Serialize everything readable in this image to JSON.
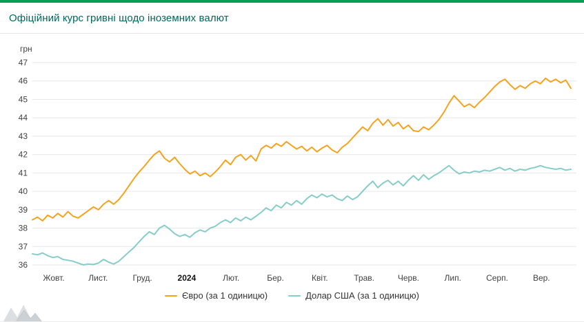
{
  "header": {
    "title": "Офіційний курс гривні щодо іноземних валют"
  },
  "colors": {
    "accent_bar": "#0a9e55",
    "title": "#00665a",
    "grid": "#e7e7e7",
    "axis_text": "#3f3f3f",
    "euro_line": "#f6a21c",
    "usd_line": "#86ccc9",
    "watermark": "#c9ced2"
  },
  "chart_data": {
    "type": "line",
    "title": "Офіційний курс гривні щодо іноземних валют",
    "y_unit": "грн",
    "xlabel": "",
    "ylabel": "грн",
    "ylim": [
      36,
      47
    ],
    "y_ticks": [
      36,
      37,
      38,
      39,
      40,
      41,
      42,
      43,
      44,
      45,
      46,
      47
    ],
    "grid": true,
    "legend_position": "bottom",
    "x_ticks": [
      {
        "label": "Жовт.",
        "bold": false
      },
      {
        "label": "Лист.",
        "bold": false
      },
      {
        "label": "Груд.",
        "bold": false
      },
      {
        "label": "2024",
        "bold": true
      },
      {
        "label": "Лют.",
        "bold": false
      },
      {
        "label": "Бер.",
        "bold": false
      },
      {
        "label": "Квіт.",
        "bold": false
      },
      {
        "label": "Трав.",
        "bold": false
      },
      {
        "label": "Черв.",
        "bold": false
      },
      {
        "label": "Лип.",
        "bold": false
      },
      {
        "label": "Серп.",
        "bold": false
      },
      {
        "label": "Вер.",
        "bold": false
      }
    ],
    "series": [
      {
        "name": "Євро (за 1 одиницю)",
        "color": "#f6a21c",
        "values": [
          38.45,
          38.6,
          38.4,
          38.7,
          38.55,
          38.8,
          38.6,
          38.9,
          38.65,
          38.55,
          38.75,
          38.95,
          39.15,
          39.0,
          39.3,
          39.5,
          39.3,
          39.55,
          39.9,
          40.3,
          40.7,
          41.05,
          41.35,
          41.7,
          42.0,
          42.2,
          41.8,
          41.6,
          41.85,
          41.5,
          41.2,
          40.95,
          41.1,
          40.85,
          41.0,
          40.8,
          41.05,
          41.35,
          41.7,
          41.45,
          41.85,
          42.0,
          41.7,
          41.95,
          41.65,
          42.3,
          42.5,
          42.35,
          42.6,
          42.45,
          42.7,
          42.5,
          42.3,
          42.45,
          42.2,
          42.4,
          42.15,
          42.35,
          42.5,
          42.25,
          42.1,
          42.4,
          42.6,
          42.9,
          43.2,
          43.5,
          43.3,
          43.7,
          43.95,
          43.6,
          43.9,
          43.55,
          43.75,
          43.4,
          43.6,
          43.3,
          43.25,
          43.5,
          43.35,
          43.6,
          43.9,
          44.3,
          44.8,
          45.2,
          44.9,
          44.6,
          44.75,
          44.55,
          44.85,
          45.1,
          45.4,
          45.7,
          45.95,
          46.1,
          45.8,
          45.55,
          45.75,
          45.6,
          45.85,
          46.0,
          45.85,
          46.15,
          45.95,
          46.1,
          45.9,
          46.05,
          45.6
        ]
      },
      {
        "name": "Долар США (за 1 одиницю)",
        "color": "#86ccc9",
        "values": [
          36.6,
          36.55,
          36.65,
          36.5,
          36.4,
          36.45,
          36.3,
          36.25,
          36.2,
          36.1,
          36.0,
          36.05,
          36.02,
          36.1,
          36.3,
          36.15,
          36.05,
          36.2,
          36.45,
          36.7,
          36.95,
          37.25,
          37.55,
          37.8,
          37.65,
          38.0,
          38.15,
          37.95,
          37.7,
          37.55,
          37.65,
          37.5,
          37.75,
          37.9,
          37.8,
          38.0,
          38.1,
          38.3,
          38.45,
          38.3,
          38.55,
          38.4,
          38.6,
          38.45,
          38.65,
          38.85,
          39.1,
          38.95,
          39.25,
          39.1,
          39.4,
          39.25,
          39.5,
          39.3,
          39.6,
          39.8,
          39.65,
          39.85,
          39.7,
          39.8,
          39.6,
          39.5,
          39.75,
          39.55,
          39.7,
          40.0,
          40.3,
          40.55,
          40.2,
          40.45,
          40.6,
          40.35,
          40.55,
          40.3,
          40.6,
          40.85,
          40.6,
          40.9,
          40.65,
          40.85,
          41.0,
          41.2,
          41.4,
          41.15,
          40.95,
          41.05,
          41.0,
          41.1,
          41.05,
          41.15,
          41.1,
          41.2,
          41.3,
          41.15,
          41.25,
          41.1,
          41.2,
          41.15,
          41.25,
          41.3,
          41.4,
          41.3,
          41.25,
          41.2,
          41.25,
          41.15,
          41.2
        ]
      }
    ]
  }
}
